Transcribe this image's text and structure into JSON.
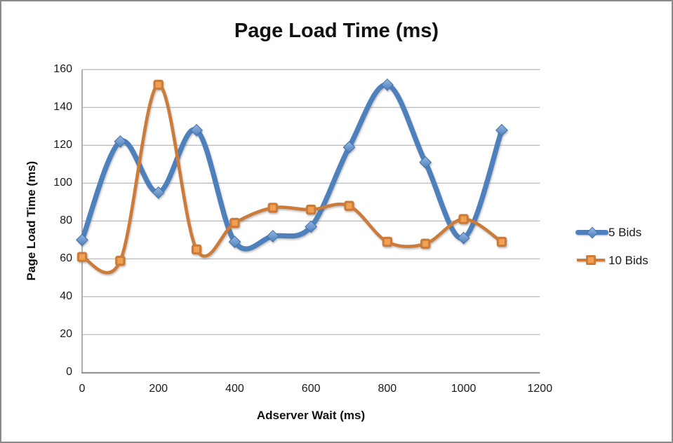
{
  "chart_data": {
    "type": "line",
    "title": "Page Load Time (ms)",
    "xlabel": "Adserver Wait (ms)",
    "ylabel": "Page Load Time (ms)",
    "x": [
      0,
      100,
      200,
      300,
      400,
      500,
      600,
      700,
      800,
      900,
      1000,
      1100
    ],
    "series": [
      {
        "name": "5 Bids",
        "values": [
          70,
          122,
          95,
          128,
          69,
          72,
          77,
          119,
          152,
          111,
          71,
          128
        ],
        "color": "#4e80bc",
        "marker": "diamond",
        "marker_fill_light": "#93b7e2",
        "marker_stroke": "#4472a6",
        "line_width": 7.2
      },
      {
        "name": "10 Bids",
        "values": [
          61,
          59,
          152,
          65,
          79,
          87,
          86,
          88,
          69,
          68,
          81,
          69
        ],
        "color": "#cb7c3b",
        "marker": "square",
        "marker_fill": "#f2a052",
        "line_width": 4.6
      }
    ],
    "xlim": [
      0,
      1200
    ],
    "ylim": [
      0,
      160
    ],
    "x_ticks": [
      0,
      200,
      400,
      600,
      800,
      1000,
      1200
    ],
    "y_ticks": [
      0,
      20,
      40,
      60,
      80,
      100,
      120,
      140,
      160
    ],
    "grid": true,
    "smooth": true,
    "legend_position": "right",
    "gridline_color": "#bfbfbf",
    "axis_line_color": "#8f8f8f",
    "frame_border_color": "#8a8a8a",
    "background_color": "#ffffff"
  }
}
